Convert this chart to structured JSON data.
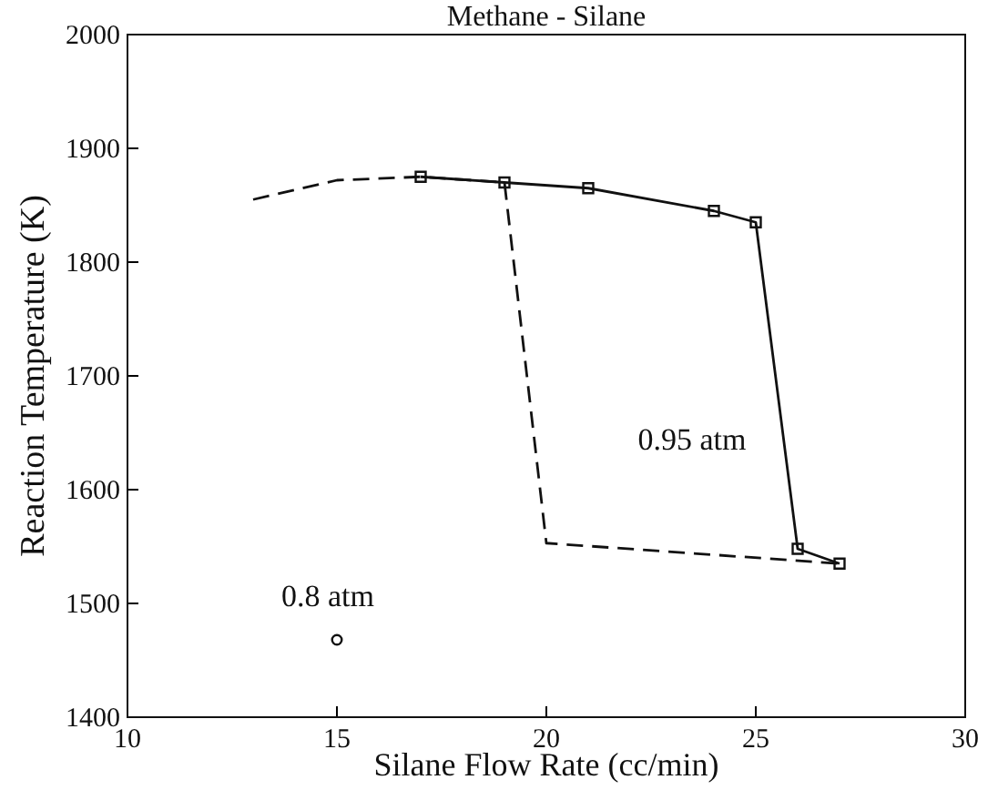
{
  "chart_data": {
    "type": "line",
    "title": "Methane - Silane",
    "xlabel": "Silane Flow Rate (cc/min)",
    "ylabel": "Reaction Temperature (K)",
    "xlim": [
      10,
      30
    ],
    "xticks": [
      10,
      15,
      20,
      25,
      30
    ],
    "ylim": [
      1400,
      2000
    ],
    "yticks": [
      1400,
      1500,
      1600,
      1700,
      1800,
      1900,
      2000
    ],
    "grid": false,
    "series": [
      {
        "color": "#111111",
        "line_style": "dashed",
        "x": [
          13,
          15,
          17,
          19,
          20,
          27
        ],
        "values": [
          1855,
          1872,
          1875,
          1870,
          1553,
          1535
        ]
      },
      {
        "color": "#111111",
        "line_style": "solid",
        "marker": "square",
        "x": [
          17,
          19,
          21,
          24,
          25,
          26,
          27
        ],
        "values": [
          1875,
          1870,
          1865,
          1845,
          1835,
          1548,
          1535
        ]
      },
      {
        "type": "scatter",
        "color": "#111111",
        "marker": "circle",
        "x": [
          15
        ],
        "values": [
          1468
        ]
      }
    ],
    "annotations": [
      "0.95 atm",
      "0.8 atm"
    ]
  }
}
